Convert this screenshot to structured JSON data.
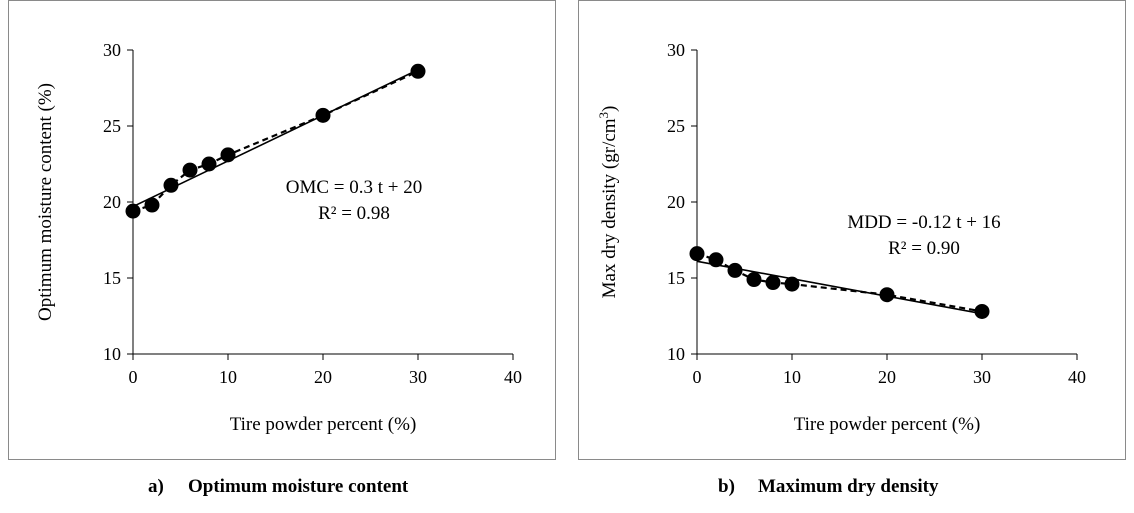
{
  "panels": [
    {
      "id": "a",
      "caption_letter": "a)",
      "caption_text": "Optimum moisture content"
    },
    {
      "id": "b",
      "caption_letter": "b)",
      "caption_text": "Maximum dry density"
    }
  ],
  "chart_data": [
    {
      "type": "scatter",
      "title": "",
      "xlabel": "Tire powder percent (%)",
      "ylabel": "Optimum moisture content (%)",
      "ylabel_sup": "",
      "ylabel_tail": "",
      "xlim": [
        0,
        40
      ],
      "ylim": [
        10,
        30
      ],
      "x_ticks": [
        0,
        10,
        20,
        30,
        40
      ],
      "y_ticks": [
        10,
        15,
        20,
        25,
        30
      ],
      "grid": false,
      "series": [
        {
          "x": [
            0,
            2,
            4,
            6,
            8,
            10,
            20,
            30
          ],
          "y": [
            19.4,
            19.8,
            21.1,
            22.1,
            22.5,
            23.1,
            25.7,
            28.6
          ],
          "marker": "filled-circle",
          "connector": "dashed"
        }
      ],
      "trendline": {
        "slope": 0.3,
        "intercept": 19.7,
        "x_range": [
          0,
          30
        ],
        "style": "solid"
      },
      "annotation": [
        "OMC = 0.3 t + 20",
        "R² = 0.98"
      ]
    },
    {
      "type": "scatter",
      "title": "",
      "xlabel": "Tire powder percent (%)",
      "ylabel": "Max dry density (gr/cm",
      "ylabel_sup": "3",
      "ylabel_tail": ")",
      "xlim": [
        0,
        40
      ],
      "ylim": [
        10,
        30
      ],
      "x_ticks": [
        0,
        10,
        20,
        30,
        40
      ],
      "y_ticks": [
        10,
        15,
        20,
        25,
        30
      ],
      "grid": false,
      "series": [
        {
          "x": [
            0,
            2,
            4,
            6,
            8,
            10,
            20,
            30
          ],
          "y": [
            16.6,
            16.2,
            15.5,
            14.9,
            14.7,
            14.6,
            13.9,
            12.8
          ],
          "marker": "filled-circle",
          "connector": "dashed"
        }
      ],
      "trendline": {
        "slope": -0.115,
        "intercept": 16.1,
        "x_range": [
          0,
          30
        ],
        "style": "solid"
      },
      "annotation": [
        "MDD = -0.12 t + 16",
        "R² = 0.90"
      ]
    }
  ]
}
